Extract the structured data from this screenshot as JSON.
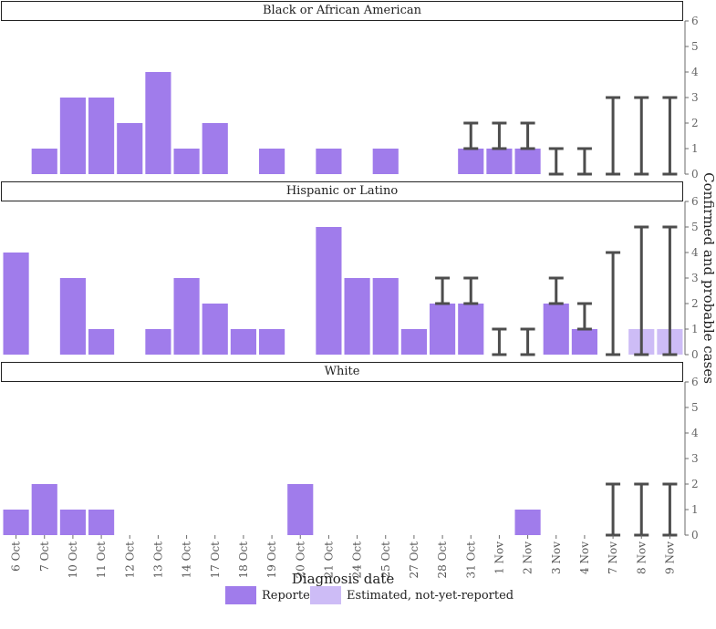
{
  "chart_data": {
    "type": "bar",
    "xlabel": "Diagnosis date",
    "ylabel": "Confirmed and probable cases",
    "ylim": [
      0,
      6
    ],
    "yticks": [
      0,
      1,
      2,
      3,
      4,
      5,
      6
    ],
    "categories": [
      "6 Oct",
      "7 Oct",
      "10 Oct",
      "11 Oct",
      "12 Oct",
      "13 Oct",
      "14 Oct",
      "17 Oct",
      "18 Oct",
      "19 Oct",
      "20 Oct",
      "21 Oct",
      "24 Oct",
      "25 Oct",
      "27 Oct",
      "28 Oct",
      "31 Oct",
      "1 Nov",
      "2 Nov",
      "3 Nov",
      "4 Nov",
      "7 Nov",
      "8 Nov",
      "9 Nov"
    ],
    "legend": [
      {
        "name": "Reported",
        "color": "#a07ceb"
      },
      {
        "name": "Estimated, not-yet-reported",
        "color": "#cdbcf6"
      }
    ],
    "facets": [
      {
        "title": "Black or African American",
        "reported": [
          0,
          1,
          3,
          3,
          2,
          4,
          1,
          2,
          0,
          1,
          0,
          1,
          0,
          1,
          0,
          0,
          1,
          1,
          1,
          0,
          0,
          0,
          0,
          0
        ],
        "estimated": [
          0,
          0,
          0,
          0,
          0,
          0,
          0,
          0,
          0,
          0,
          0,
          0,
          0,
          0,
          0,
          0,
          0,
          0,
          0,
          0,
          0,
          0,
          0,
          0
        ],
        "intervals": [
          null,
          null,
          null,
          null,
          null,
          null,
          null,
          null,
          null,
          null,
          null,
          null,
          null,
          null,
          null,
          null,
          [
            1,
            2
          ],
          [
            1,
            2
          ],
          [
            1,
            2
          ],
          [
            0,
            1
          ],
          [
            0,
            1
          ],
          [
            0,
            3
          ],
          [
            0,
            3
          ],
          [
            0,
            3
          ]
        ]
      },
      {
        "title": "Hispanic or Latino",
        "reported": [
          4,
          0,
          3,
          1,
          0,
          1,
          3,
          2,
          1,
          1,
          0,
          5,
          3,
          3,
          1,
          2,
          2,
          0,
          0,
          2,
          1,
          0,
          0,
          0
        ],
        "estimated": [
          0,
          0,
          0,
          0,
          0,
          0,
          0,
          0,
          0,
          0,
          0,
          0,
          0,
          0,
          0,
          0,
          0,
          0,
          0,
          0,
          0,
          0,
          1,
          1
        ],
        "intervals": [
          null,
          null,
          null,
          null,
          null,
          null,
          null,
          null,
          null,
          null,
          null,
          null,
          null,
          null,
          null,
          [
            2,
            3
          ],
          [
            2,
            3
          ],
          [
            0,
            1
          ],
          [
            0,
            1
          ],
          [
            2,
            3
          ],
          [
            1,
            2
          ],
          [
            0,
            4
          ],
          [
            0,
            5
          ],
          [
            0,
            5
          ]
        ]
      },
      {
        "title": "White",
        "reported": [
          1,
          2,
          1,
          1,
          0,
          0,
          0,
          0,
          0,
          0,
          2,
          0,
          0,
          0,
          0,
          0,
          0,
          0,
          1,
          0,
          0,
          0,
          0,
          0
        ],
        "estimated": [
          0,
          0,
          0,
          0,
          0,
          0,
          0,
          0,
          0,
          0,
          0,
          0,
          0,
          0,
          0,
          0,
          0,
          0,
          0,
          0,
          0,
          0,
          0,
          0
        ],
        "intervals": [
          null,
          null,
          null,
          null,
          null,
          null,
          null,
          null,
          null,
          null,
          null,
          null,
          null,
          null,
          null,
          null,
          null,
          null,
          null,
          null,
          null,
          [
            0,
            2
          ],
          [
            0,
            2
          ],
          [
            0,
            2
          ]
        ]
      }
    ]
  },
  "colors": {
    "reported": "#a07ceb",
    "estimated": "#cdbcf6",
    "interval": "#4d4d4d",
    "axis": "#6b6b6b"
  }
}
